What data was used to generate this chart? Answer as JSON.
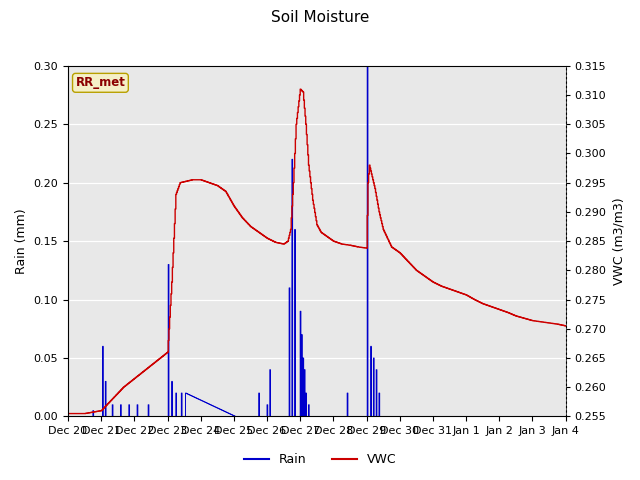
{
  "title": "Soil Moisture",
  "ylabel_left": "Rain (mm)",
  "ylabel_right": "VWC (m3/m3)",
  "annotation": "RR_met",
  "ylim_left": [
    0.0,
    0.3
  ],
  "ylim_right": [
    0.255,
    0.315
  ],
  "yticks_left": [
    0.0,
    0.05,
    0.1,
    0.15,
    0.2,
    0.25,
    0.3
  ],
  "yticks_right": [
    0.255,
    0.26,
    0.265,
    0.27,
    0.275,
    0.28,
    0.285,
    0.29,
    0.295,
    0.3,
    0.305,
    0.31,
    0.315
  ],
  "rain_color": "#0000cc",
  "vwc_color": "#cc0000",
  "background_color": "#e8e8e8",
  "title_fontsize": 11,
  "axis_label_fontsize": 9,
  "tick_fontsize": 8
}
